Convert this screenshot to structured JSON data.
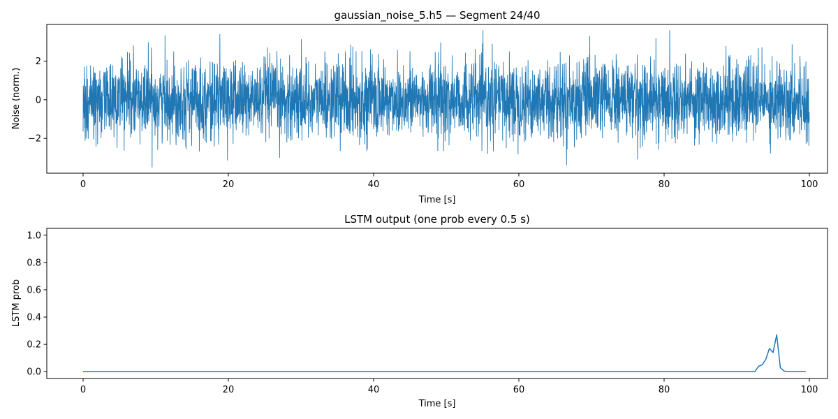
{
  "chart_data": [
    {
      "type": "line",
      "title": "gaussian_noise_5.h5 — Segment 24/40",
      "xlabel": "Time [s]",
      "ylabel": "Noise (norm.)",
      "xlim": [
        -5,
        102.5
      ],
      "ylim": [
        -3.8,
        3.9
      ],
      "xticks": [
        0,
        20,
        40,
        60,
        80,
        100
      ],
      "yticks": [
        -2,
        0,
        2
      ],
      "ytick_labels": [
        "−2",
        "0",
        "2"
      ],
      "series": [
        {
          "name": "noise",
          "description": "Normalized Gaussian noise, ~N(0,1), sampled densely over 0–100 s; peaks near ±3.5",
          "x_start": 0,
          "x_end": 100,
          "n_samples": 4000,
          "mean": 0,
          "std": 1,
          "min": -3.5,
          "max": 3.6,
          "color": "#1f77b4"
        }
      ]
    },
    {
      "type": "line",
      "title": "LSTM output (one prob every 0.5 s)",
      "xlabel": "Time [s]",
      "ylabel": "LSTM prob",
      "xlim": [
        -5,
        102.5
      ],
      "ylim": [
        -0.05,
        1.05
      ],
      "xticks": [
        0,
        20,
        40,
        60,
        80,
        100
      ],
      "yticks": [
        0.0,
        0.2,
        0.4,
        0.6,
        0.8,
        1.0
      ],
      "ytick_labels": [
        "0.0",
        "0.2",
        "0.4",
        "0.6",
        "0.8",
        "1.0"
      ],
      "series": [
        {
          "name": "LSTM prob",
          "color": "#1f77b4",
          "x_step": 0.5,
          "x_start": 0,
          "x_end": 99.5,
          "baseline": 0.0,
          "nonzero_points": {
            "x": [
              92.5,
              93.0,
              93.5,
              94.0,
              94.5,
              95.0,
              95.5,
              96.0,
              96.5,
              97.0
            ],
            "y": [
              0.0,
              0.04,
              0.05,
              0.09,
              0.17,
              0.14,
              0.27,
              0.03,
              0.005,
              0.0
            ]
          }
        }
      ]
    }
  ]
}
